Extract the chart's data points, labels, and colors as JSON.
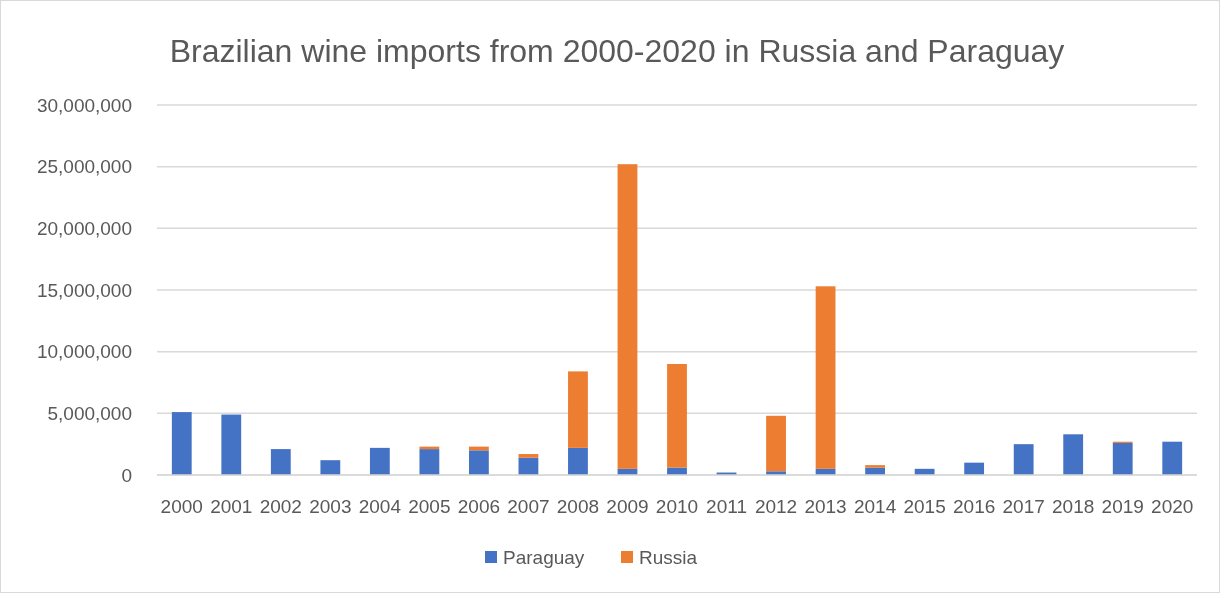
{
  "chart_data": {
    "type": "bar",
    "title": "Brazilian wine imports from 2000-2020 in Russia and Paraguay",
    "stacked": true,
    "categories": [
      "2000",
      "2001",
      "2002",
      "2003",
      "2004",
      "2005",
      "2006",
      "2007",
      "2008",
      "2009",
      "2010",
      "2011",
      "2012",
      "2013",
      "2014",
      "2015",
      "2016",
      "2017",
      "2018",
      "2019",
      "2020"
    ],
    "series": [
      {
        "name": "Paraguay",
        "color": "#4472c4",
        "values": [
          5100000,
          4900000,
          2100000,
          1200000,
          2200000,
          2100000,
          2000000,
          1400000,
          2200000,
          500000,
          600000,
          200000,
          300000,
          500000,
          600000,
          500000,
          1000000,
          2500000,
          3300000,
          2600000,
          2700000
        ]
      },
      {
        "name": "Russia",
        "color": "#ed7d31",
        "values": [
          null,
          null,
          null,
          null,
          null,
          200000,
          300000,
          300000,
          6200000,
          24700000,
          8400000,
          null,
          4500000,
          14800000,
          200000,
          null,
          null,
          null,
          null,
          100000,
          null
        ]
      }
    ],
    "ylim": [
      0,
      30000000
    ],
    "yticks": [
      {
        "value": 0,
        "label": "0"
      },
      {
        "value": 5000000,
        "label": "5,000,000"
      },
      {
        "value": 10000000,
        "label": "10,000,000"
      },
      {
        "value": 15000000,
        "label": "15,000,000"
      },
      {
        "value": 20000000,
        "label": "20,000,000"
      },
      {
        "value": 25000000,
        "label": "25,000,000"
      },
      {
        "value": 30000000,
        "label": "30,000,000"
      }
    ],
    "grid": "y",
    "legend": "bottom"
  }
}
